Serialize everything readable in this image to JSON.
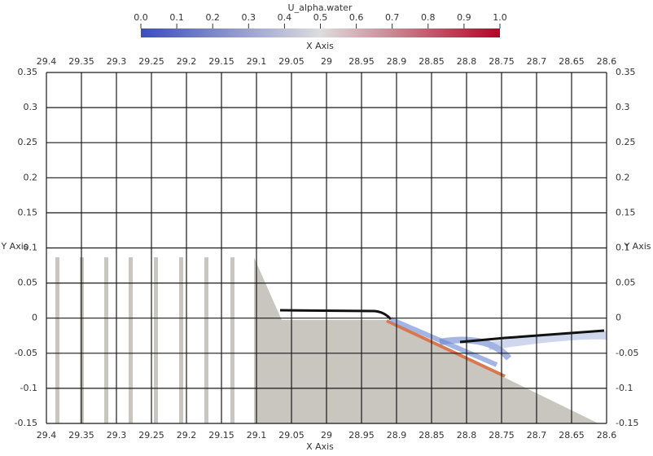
{
  "colorbar": {
    "title": "U_alpha.water",
    "range": [
      0,
      1
    ],
    "ticks": [
      {
        "value": 0,
        "label": "0.0"
      },
      {
        "value": 0.1,
        "label": "0.1"
      },
      {
        "value": 0.2,
        "label": "0.2"
      },
      {
        "value": 0.3,
        "label": "0.3"
      },
      {
        "value": 0.4,
        "label": "0.4"
      },
      {
        "value": 0.5,
        "label": "0.5"
      },
      {
        "value": 0.6,
        "label": "0.6"
      },
      {
        "value": 0.7,
        "label": "0.7"
      },
      {
        "value": 0.8,
        "label": "0.8"
      },
      {
        "value": 0.9,
        "label": "0.9"
      },
      {
        "value": 1,
        "label": "1.0"
      }
    ]
  },
  "axes": {
    "x_label": "X Axis",
    "y_label": "Y Axis",
    "xlim": [
      29.4,
      28.6
    ],
    "ylim": [
      -0.15,
      0.35
    ],
    "xticks": [
      29.4,
      29.35,
      29.3,
      29.25,
      29.2,
      29.15,
      29.1,
      29.05,
      29,
      28.95,
      28.9,
      28.85,
      28.8,
      28.75,
      28.7,
      28.65,
      28.6
    ],
    "yticks": [
      0.35,
      0.3,
      0.25,
      0.2,
      0.15,
      0.1,
      0.05,
      0,
      -0.05,
      -0.1,
      -0.15
    ]
  }
}
